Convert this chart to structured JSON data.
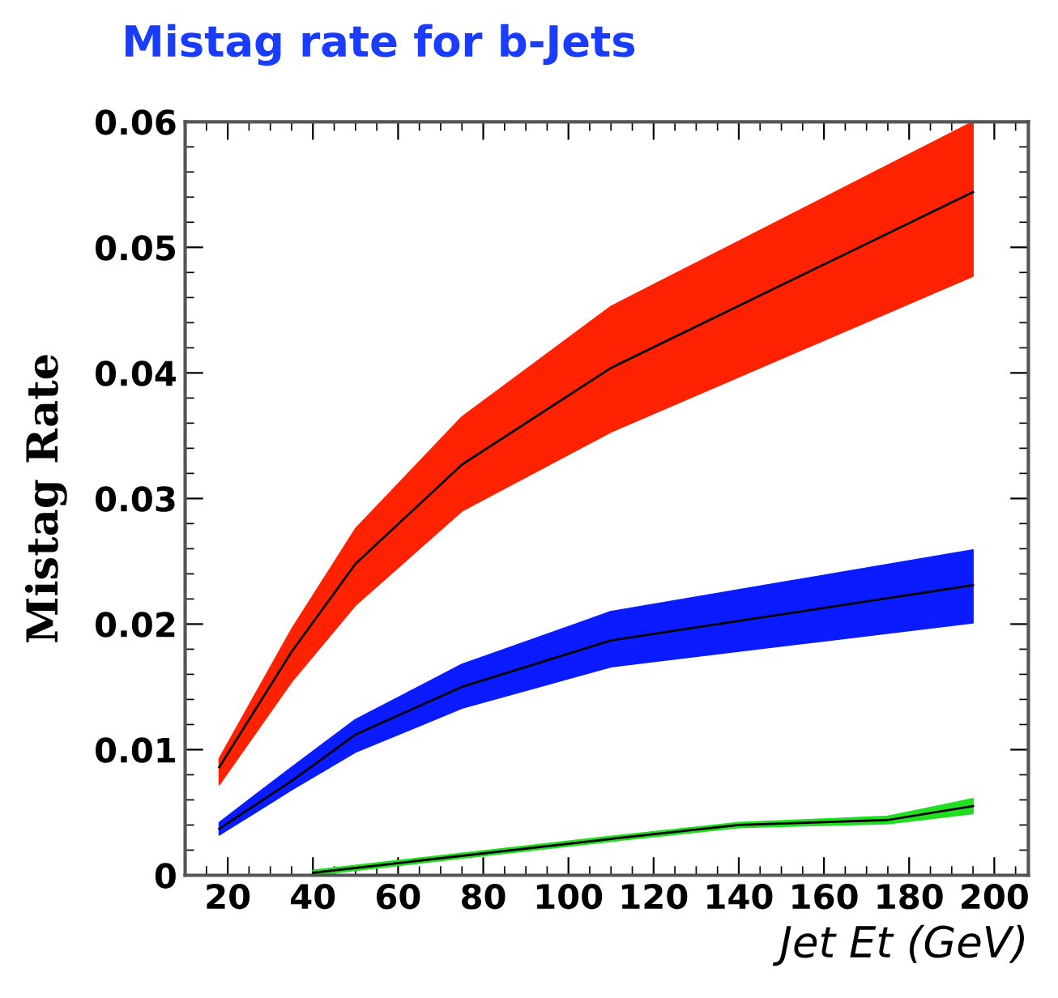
{
  "chart_data": {
    "type": "line",
    "title": "Mistag rate for b-Jets",
    "xlabel": "Jet Et (GeV)",
    "ylabel": "Mistag Rate",
    "xlim": [
      10,
      208
    ],
    "xticks": [
      20,
      40,
      60,
      80,
      100,
      120,
      140,
      160,
      180,
      200
    ],
    "ylim": [
      0,
      0.06
    ],
    "yticks": [
      0,
      0.01,
      0.02,
      0.03,
      0.04,
      0.05,
      0.06
    ],
    "grid": false,
    "legend": false,
    "marker": "none",
    "line_style": "solid",
    "series": [
      {
        "color": "#000000",
        "colors": [
          "#ff2200",
          "#ff2200",
          "#ff2200",
          "#ff2200",
          "#ff2200",
          "#ff2200"
        ],
        "x": [
          18,
          35,
          50,
          75,
          110,
          195
        ],
        "values": [
          0.0086,
          0.0178,
          0.0248,
          0.0327,
          0.0404,
          0.0544
        ],
        "lower": [
          0.0072,
          0.0154,
          0.0215,
          0.029,
          0.0353,
          0.0477
        ],
        "upper": [
          0.0093,
          0.0196,
          0.0276,
          0.0365,
          0.0453,
          0.06
        ]
      },
      {
        "color": "#000000",
        "colors": [
          "#0a1cff",
          "#0a1cff",
          "#0a1cff",
          "#0a1cff",
          "#0a1cff",
          "#0a1cff"
        ],
        "x": [
          18,
          35,
          50,
          75,
          110,
          195
        ],
        "values": [
          0.0037,
          0.0075,
          0.0112,
          0.015,
          0.0187,
          0.0231
        ],
        "lower": [
          0.0032,
          0.0068,
          0.0098,
          0.0133,
          0.0166,
          0.0201
        ],
        "upper": [
          0.0042,
          0.0086,
          0.0124,
          0.0168,
          0.021,
          0.0259
        ]
      },
      {
        "color": "#000000",
        "colors": [
          "#22dd22",
          "#22dd22",
          "#22dd22",
          "#22dd22",
          "#22dd22"
        ],
        "x": [
          40,
          110,
          140,
          175,
          195
        ],
        "values": [
          0.0002,
          0.0029,
          0.004,
          0.0044,
          0.0055
        ],
        "lower": [
          0.0,
          0.0027,
          0.0038,
          0.0041,
          0.0049
        ],
        "upper": [
          0.0004,
          0.0031,
          0.0042,
          0.0047,
          0.0061
        ]
      }
    ]
  }
}
